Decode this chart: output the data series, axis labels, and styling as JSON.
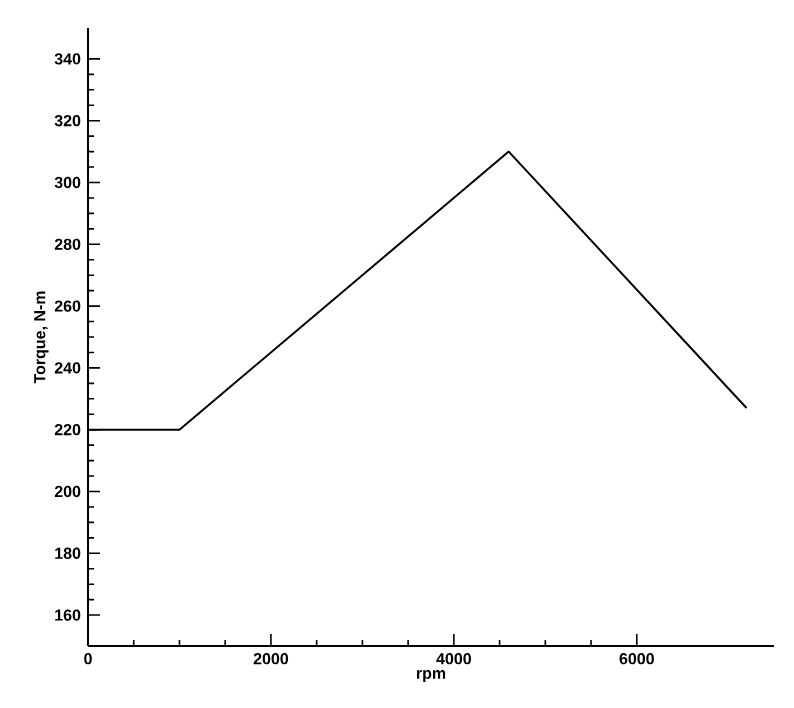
{
  "chart_data": {
    "type": "line",
    "xlabel": "rpm",
    "ylabel": "Torque, N-m",
    "x": [
      0,
      1000,
      4600,
      7200
    ],
    "values": [
      220,
      220,
      310,
      227
    ],
    "color": "#000000",
    "xlim": [
      0,
      7500
    ],
    "ylim": [
      150,
      350
    ],
    "xticks": [
      0,
      2000,
      4000,
      6000
    ],
    "yticks": [
      160,
      180,
      200,
      220,
      240,
      260,
      280,
      300,
      320,
      340
    ],
    "grid": false,
    "marker": "none",
    "line_style": "solid"
  }
}
